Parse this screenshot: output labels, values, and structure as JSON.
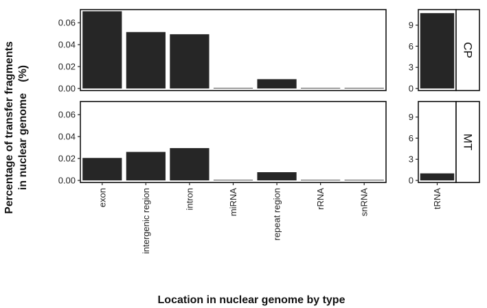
{
  "chart_data": {
    "type": "bar",
    "facets": "rows: CP, MT; columns: main category types, tRNA (free y scales)",
    "ylabel_line1": "Percentage of transfer fragments",
    "ylabel_line2": "in nuclear genome　(%)",
    "xlabel": "Location in nuclear genome by type",
    "row_labels": [
      "CP",
      "MT"
    ],
    "panel_groups": [
      {
        "categories": [
          "exon",
          "intergenic region",
          "intron",
          "miRNA",
          "repeat region",
          "rRNA",
          "snRNA"
        ],
        "ylim": [
          0,
          0.072
        ],
        "yticks": [
          "0.00",
          "0.02",
          "0.04",
          "0.06"
        ],
        "ytick_values": [
          0,
          0.02,
          0.04,
          0.06
        ]
      },
      {
        "categories": [
          "tRNA"
        ],
        "ylim": [
          0,
          11.2
        ],
        "yticks": [
          "0",
          "3",
          "6",
          "9"
        ],
        "ytick_values": [
          0,
          3,
          6,
          9
        ]
      }
    ],
    "series": [
      {
        "facet": "CP",
        "values": [
          0.0705,
          0.0515,
          0.0495,
          0.0,
          0.0085,
          0.0,
          0.0
        ],
        "tRNA": 10.7
      },
      {
        "facet": "MT",
        "values": [
          0.0205,
          0.026,
          0.0295,
          0.0,
          0.0075,
          0.0,
          0.0
        ],
        "tRNA": 1.0
      }
    ],
    "bar_color": "#262626",
    "grid": false,
    "legend": "none"
  }
}
